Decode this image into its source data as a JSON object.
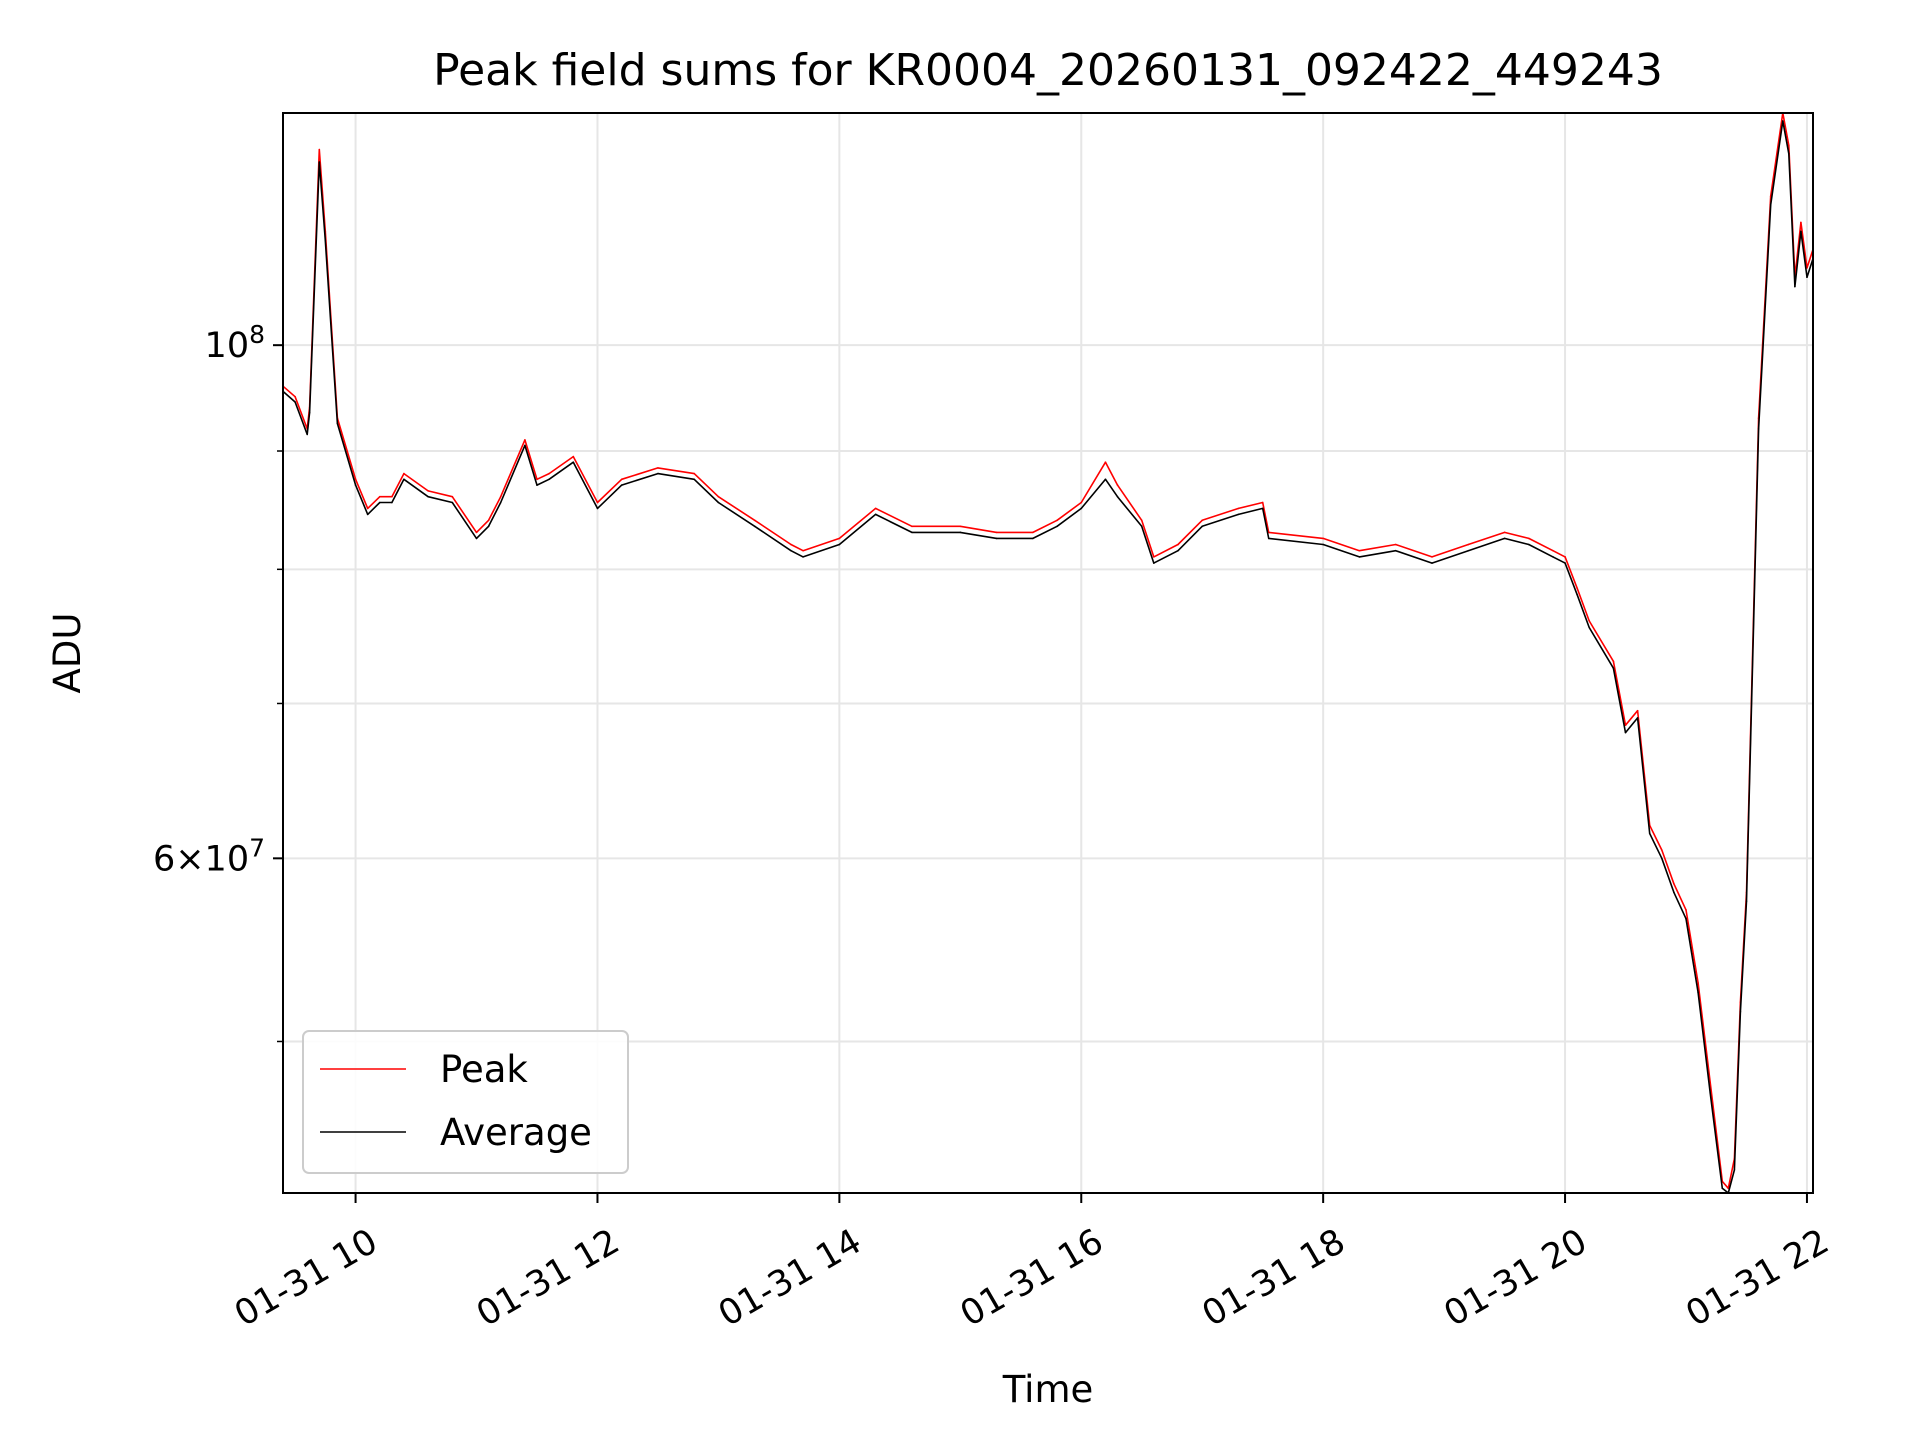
{
  "chart_data": {
    "type": "line",
    "title": "Peak field sums for KR0004_20260131_092422_449243",
    "xlabel": "Time",
    "ylabel": "ADU",
    "x_tick_labels": [
      "01-31 10",
      "01-31 12",
      "01-31 14",
      "01-31 16",
      "01-31 18",
      "01-31 20",
      "01-31 22"
    ],
    "x_ticks_hours": [
      10,
      12,
      14,
      16,
      18,
      20,
      22
    ],
    "y_major_ticks": [
      {
        "value": 60000000,
        "mantissa": "6",
        "base": "10",
        "exp": "7"
      },
      {
        "value": 100000000,
        "mantissa": "",
        "base": "10",
        "exp": "8"
      }
    ],
    "y_minor_ticks": [
      50000000,
      70000000,
      80000000,
      90000000
    ],
    "y_scale": "log",
    "xlim_hours": [
      9.4,
      22.05
    ],
    "ylim": [
      43000000,
      126000000
    ],
    "grid": true,
    "legend_position": "lower left",
    "colors": {
      "peak": "#ff0000",
      "average": "#000000"
    },
    "series": [
      {
        "name": "Peak",
        "x_hours": [
          9.4,
          9.5,
          9.6,
          9.62,
          9.7,
          9.75,
          9.85,
          10.0,
          10.1,
          10.2,
          10.3,
          10.4,
          10.6,
          10.8,
          11.0,
          11.1,
          11.2,
          11.4,
          11.5,
          11.6,
          11.8,
          12.0,
          12.2,
          12.5,
          12.8,
          13.0,
          13.3,
          13.6,
          13.7,
          14.0,
          14.3,
          14.6,
          15.0,
          15.3,
          15.6,
          15.8,
          16.0,
          16.2,
          16.3,
          16.5,
          16.6,
          16.8,
          17.0,
          17.3,
          17.5,
          17.55,
          18.0,
          18.3,
          18.6,
          18.9,
          19.2,
          19.5,
          19.7,
          19.9,
          20.0,
          20.1,
          20.2,
          20.4,
          20.5,
          20.6,
          20.7,
          20.8,
          20.9,
          21.0,
          21.1,
          21.2,
          21.3,
          21.35,
          21.4,
          21.45,
          21.5,
          21.6,
          21.7,
          21.8,
          21.85,
          21.9,
          21.95,
          22.0,
          22.05
        ],
        "values": [
          96000000,
          95000000,
          92000000,
          94000000,
          121500000,
          112000000,
          93000000,
          87500000,
          85000000,
          86000000,
          86000000,
          88000000,
          86500000,
          86000000,
          83000000,
          84000000,
          86000000,
          91000000,
          87500000,
          88000000,
          89500000,
          85500000,
          87500000,
          88500000,
          88000000,
          86000000,
          84000000,
          82000000,
          81500000,
          82500000,
          85000000,
          83500000,
          83500000,
          83000000,
          83000000,
          84000000,
          85500000,
          89000000,
          87000000,
          84000000,
          81000000,
          82000000,
          84000000,
          85000000,
          85500000,
          83000000,
          82500000,
          81500000,
          82000000,
          81000000,
          82000000,
          83000000,
          82500000,
          81500000,
          81000000,
          78500000,
          76000000,
          73000000,
          68500000,
          69500000,
          62000000,
          60500000,
          58500000,
          57000000,
          53000000,
          48000000,
          43500000,
          43200000,
          44500000,
          52000000,
          58000000,
          93000000,
          116000000,
          126000000,
          122000000,
          107000000,
          113000000,
          108000000,
          110000000
        ]
      },
      {
        "name": "Average",
        "x_hours": [
          9.4,
          9.5,
          9.6,
          9.62,
          9.7,
          9.75,
          9.85,
          10.0,
          10.1,
          10.2,
          10.3,
          10.4,
          10.6,
          10.8,
          11.0,
          11.1,
          11.2,
          11.4,
          11.5,
          11.6,
          11.8,
          12.0,
          12.2,
          12.5,
          12.8,
          13.0,
          13.3,
          13.6,
          13.7,
          14.0,
          14.3,
          14.6,
          15.0,
          15.3,
          15.6,
          15.8,
          16.0,
          16.2,
          16.3,
          16.5,
          16.6,
          16.8,
          17.0,
          17.3,
          17.5,
          17.55,
          18.0,
          18.3,
          18.6,
          18.9,
          19.2,
          19.5,
          19.7,
          19.9,
          20.0,
          20.1,
          20.2,
          20.4,
          20.5,
          20.6,
          20.7,
          20.8,
          20.9,
          21.0,
          21.1,
          21.2,
          21.3,
          21.35,
          21.4,
          21.45,
          21.5,
          21.6,
          21.7,
          21.8,
          21.85,
          21.9,
          21.95,
          22.0,
          22.05
        ],
        "values": [
          95500000,
          94500000,
          91500000,
          93500000,
          120000000,
          111000000,
          92500000,
          87000000,
          84500000,
          85500000,
          85500000,
          87500000,
          86000000,
          85500000,
          82500000,
          83500000,
          85500000,
          90500000,
          87000000,
          87500000,
          89000000,
          85000000,
          87000000,
          88000000,
          87500000,
          85500000,
          83500000,
          81500000,
          81000000,
          82000000,
          84500000,
          83000000,
          83000000,
          82500000,
          82500000,
          83500000,
          85000000,
          87500000,
          86000000,
          83500000,
          80500000,
          81500000,
          83500000,
          84500000,
          85000000,
          82500000,
          82000000,
          81000000,
          81500000,
          80500000,
          81500000,
          82500000,
          82000000,
          81000000,
          80500000,
          78000000,
          75500000,
          72500000,
          68000000,
          69000000,
          61500000,
          60000000,
          58000000,
          56500000,
          52500000,
          47500000,
          43200000,
          43000000,
          44000000,
          51500000,
          57500000,
          92000000,
          115000000,
          125000000,
          121000000,
          106000000,
          112000000,
          107000000,
          109000000
        ]
      }
    ]
  }
}
